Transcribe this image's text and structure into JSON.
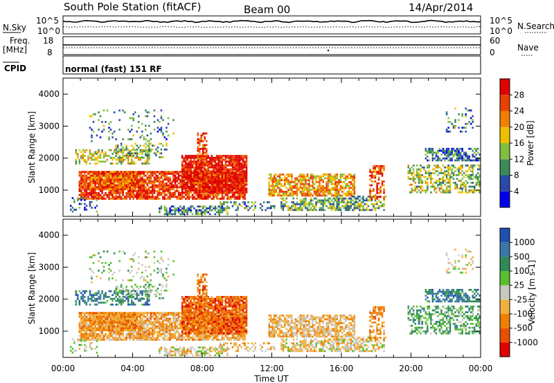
{
  "header": {
    "station": "South Pole Station (fitACF)",
    "beam": "Beam 00",
    "date": "14/Apr/2014"
  },
  "top_panels": {
    "nsky_label": "N.Sky",
    "nsearch_label": "N.Search",
    "n_ticks": [
      "10^5",
      "10^0"
    ],
    "freq_label_1": "Freq.",
    "freq_label_2": "[MHz]",
    "freq_ticks": [
      "18",
      "8"
    ],
    "nave_label": "Nave",
    "nave_ticks": [
      "60",
      "0"
    ],
    "cpid_label": "CPID",
    "cpid_text": "normal (fast) 151 RF"
  },
  "chart_data": [
    {
      "type": "heatmap",
      "title": "",
      "quantity": "Power",
      "ylabel": "Slant Range [km]",
      "xlabel": "",
      "ylim": [
        180,
        4500
      ],
      "yticks": [
        "1000",
        "2000",
        "3000",
        "4000"
      ],
      "colorbar_label": "Power [dB]",
      "colorbar_ticks": [
        "28",
        "24",
        "20",
        "16",
        "12",
        "8",
        "4"
      ],
      "colors": [
        "#0000ee",
        "#2a4aa8",
        "#3a8a5a",
        "#80c040",
        "#f0c000",
        "#f08000",
        "#e84000",
        "#e00000"
      ],
      "clim": [
        0,
        32
      ]
    },
    {
      "type": "heatmap",
      "title": "",
      "quantity": "Velocity",
      "ylabel": "Slant Range [km]",
      "xlabel": "Time UT",
      "ylim": [
        180,
        4500
      ],
      "yticks": [
        "1000",
        "2000",
        "3000",
        "4000"
      ],
      "xticks": [
        "00:00",
        "04:00",
        "08:00",
        "12:00",
        "16:00",
        "20:00",
        "00:00"
      ],
      "xlim_hours": [
        0,
        24
      ],
      "colorbar_label": "Velocity [m s-1]",
      "colorbar_ticks": [
        "1000",
        "500",
        "100",
        "25",
        "-25",
        "-100",
        "-500",
        "-1000"
      ],
      "colors": [
        "#2050b0",
        "#3a78a8",
        "#2e8a56",
        "#58c030",
        "#c8c8c0",
        "#f0b040",
        "#f08000",
        "#e85000",
        "#e00000"
      ],
      "clim": [
        -1000,
        1000
      ]
    }
  ]
}
